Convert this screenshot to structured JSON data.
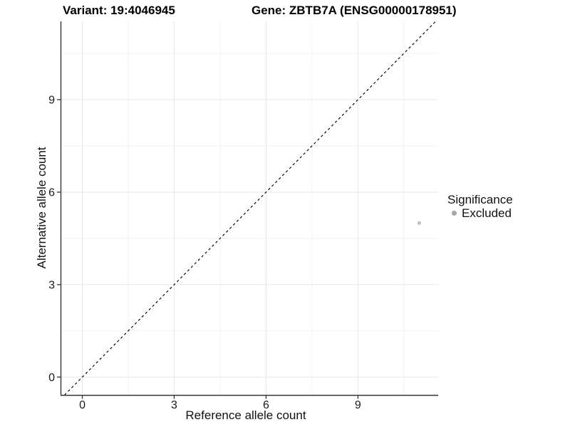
{
  "chart_data": {
    "type": "scatter",
    "titles": {
      "left": "Variant: 19:4046945",
      "right": "Gene: ZBTB7A (ENSG00000178951)"
    },
    "xlabel": "Reference allele count",
    "ylabel": "Alternative allele count",
    "x_ticks": [
      0,
      3,
      6,
      9
    ],
    "y_ticks": [
      0,
      3,
      6,
      9
    ],
    "x_minor_gridlines": [
      1.5,
      4.5,
      7.5,
      10.5
    ],
    "y_minor_gridlines": [
      1.5,
      4.5,
      7.5,
      10.5
    ],
    "xlim": [
      -0.71,
      11.62
    ],
    "ylim": [
      -0.58,
      11.54
    ],
    "points": [
      {
        "x": 11,
        "y": 5,
        "significance": "Excluded"
      }
    ],
    "point_color": "#c0c0c0",
    "point_radius": 2.6,
    "identity_line": {
      "slope": 1,
      "intercept": 0,
      "style": "dashed",
      "color": "#000000"
    },
    "legend": {
      "title": "Significance",
      "position": "right",
      "items": [
        {
          "label": "Excluded",
          "color": "#a9a9a9"
        }
      ]
    },
    "grid": {
      "major_color": "#e7e7e7",
      "minor_color": "#f2f2f2",
      "background": "#ffffff"
    },
    "axis_color": "#333333"
  }
}
